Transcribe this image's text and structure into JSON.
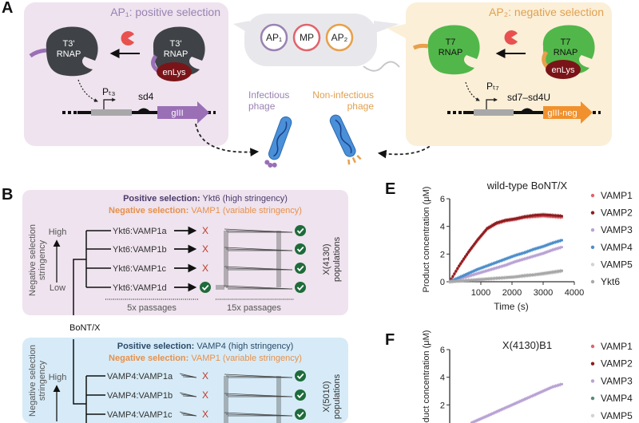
{
  "panel_labels": {
    "a": "A",
    "b": "B",
    "e": "E",
    "f": "F"
  },
  "panel_a": {
    "ap1_title": "AP₁: positive selection",
    "ap2_title": "AP₂: negative selection",
    "t3_rnap_line1": "T3'",
    "t3_rnap_line2": "RNAP",
    "t7_rnap_line1": "T7",
    "t7_rnap_line2": "RNAP",
    "enlys": "enLys",
    "promoter_t3": "Pₜ₃",
    "promoter_t7": "Pₜ₇",
    "sd4": "sd4",
    "sd7": "sd7–sd4U",
    "gene_pos": "gIII",
    "gene_neg": "gIII-neg",
    "plasmids": [
      "AP₁",
      "MP",
      "AP₂"
    ],
    "infectious": [
      "Infectious",
      "phage"
    ],
    "noninfectious": [
      "Non-infectious",
      "phage"
    ],
    "colors": {
      "ap1_box": "#eee3ee",
      "ap2_box": "#fbefd8",
      "t3": "#3f4347",
      "t7": "#52b74a",
      "protease": "#e8514f",
      "enlys": "#7a1418",
      "gene_pos": "#9a6fb6",
      "gene_neg": "#f0912e"
    }
  },
  "panel_b": {
    "bont": "BoNT/X",
    "stringency_label": [
      "Negative selection",
      "stringency"
    ],
    "high": "High",
    "low": "Low",
    "groups": [
      {
        "pos_bold": "Positive selection:",
        "pos_text": " Ykt6 (high stringency)",
        "neg_bold": "Negative selection:",
        "neg_text": " VAMP1 (variable stringency)",
        "rows": [
          {
            "label": "Ykt6:VAMP1a",
            "round1": "X"
          },
          {
            "label": "Ykt6:VAMP1b",
            "round1": "X"
          },
          {
            "label": "Ykt6:VAMP1c",
            "round1": "X"
          },
          {
            "label": "Ykt6:VAMP1d",
            "round1": "check"
          }
        ],
        "passages1": "5x passages",
        "passages2": "15x passages",
        "populations": [
          "X(4130)",
          "populations"
        ]
      },
      {
        "pos_bold": "Positive selection:",
        "pos_text": " VAMP4 (high stringency)",
        "neg_bold": "Negative selection:",
        "neg_text": " VAMP1 (variable stringency)",
        "rows": [
          {
            "label": "VAMP4:VAMP1a",
            "round1": "X"
          },
          {
            "label": "VAMP4:VAMP1b",
            "round1": "X"
          },
          {
            "label": "VAMP4:VAMP1c",
            "round1": "X"
          }
        ],
        "populations": [
          "X(5010)",
          "populations"
        ]
      }
    ]
  },
  "chart_data": [
    {
      "type": "scatter",
      "title": "wild-type BoNT/X",
      "xlabel": "Time (s)",
      "ylabel": "Product concentration (μM)",
      "xlim": [
        0,
        4000
      ],
      "ylim": [
        0,
        6
      ],
      "xticks": [
        "1000",
        "2000",
        "3000",
        "4000"
      ],
      "yticks": [
        "0",
        "2",
        "4",
        "6"
      ],
      "legend": "right",
      "x": [
        0,
        300,
        600,
        900,
        1200,
        1500,
        1800,
        2100,
        2400,
        2700,
        3000,
        3300,
        3600
      ],
      "series": [
        {
          "name": "VAMP1",
          "color": "#e0646c",
          "values": [
            0,
            1.1,
            2.1,
            3.0,
            3.8,
            4.2,
            4.4,
            4.5,
            4.65,
            4.7,
            4.75,
            4.7,
            4.65
          ]
        },
        {
          "name": "VAMP2",
          "color": "#8e1c1e",
          "values": [
            0,
            1.15,
            2.15,
            3.05,
            3.85,
            4.25,
            4.45,
            4.55,
            4.7,
            4.8,
            4.85,
            4.8,
            4.75
          ]
        },
        {
          "name": "VAMP3",
          "color": "#b9a2d4",
          "values": [
            0,
            0.2,
            0.4,
            0.6,
            0.8,
            1.0,
            1.2,
            1.45,
            1.65,
            1.85,
            2.05,
            2.3,
            2.5
          ]
        },
        {
          "name": "VAMP4",
          "color": "#4d8ecb",
          "values": [
            0,
            0.3,
            0.6,
            0.9,
            1.15,
            1.4,
            1.65,
            1.9,
            2.1,
            2.35,
            2.55,
            2.8,
            3.0
          ]
        },
        {
          "name": "VAMP5",
          "color": "#d2d2d2",
          "values": [
            0,
            0.05,
            0.1,
            0.15,
            0.2,
            0.25,
            0.3,
            0.35,
            0.4,
            0.5,
            0.55,
            0.65,
            0.75
          ]
        },
        {
          "name": "Ykt6",
          "color": "#a8a8a8",
          "values": [
            0,
            0.05,
            0.1,
            0.15,
            0.2,
            0.25,
            0.3,
            0.35,
            0.45,
            0.5,
            0.6,
            0.7,
            0.8
          ]
        }
      ]
    },
    {
      "type": "scatter",
      "title": "X(4130)B1",
      "ylabel": "Product concentration (μM)",
      "xlim": [
        0,
        4000
      ],
      "ylim": [
        0,
        6
      ],
      "yticks": [
        "2",
        "4",
        "6"
      ],
      "legend": "right",
      "x": [
        0,
        300,
        600,
        900,
        1200,
        1500,
        1800,
        2100,
        2400,
        2700,
        3000,
        3300,
        3600
      ],
      "series": [
        {
          "name": "VAMP1",
          "color": "#e0646c"
        },
        {
          "name": "VAMP2",
          "color": "#8e1c1e"
        },
        {
          "name": "VAMP3",
          "color": "#b9a2d4",
          "values": [
            0,
            0.3,
            0.6,
            0.9,
            1.2,
            1.5,
            1.8,
            2.1,
            2.4,
            2.7,
            3.0,
            3.3,
            3.5
          ]
        },
        {
          "name": "VAMP4",
          "color": "#5a8a80"
        },
        {
          "name": "VAMP5",
          "color": "#d2d2d2"
        }
      ]
    }
  ]
}
